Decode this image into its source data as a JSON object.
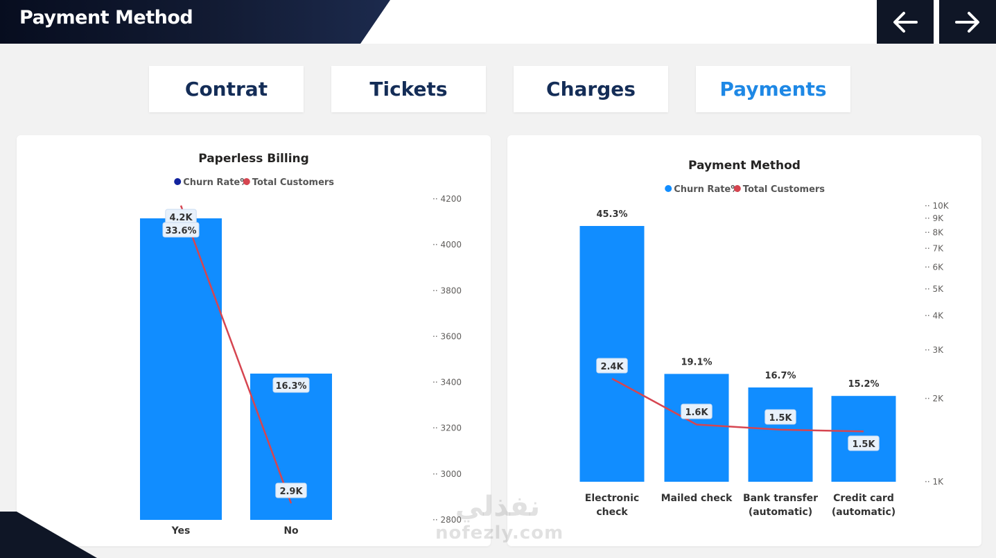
{
  "header": {
    "title": "Payment Method",
    "back_icon": "arrow-left-icon",
    "forward_icon": "arrow-right-icon"
  },
  "tabs": [
    {
      "label": "Contrat",
      "active": false
    },
    {
      "label": "Tickets",
      "active": false
    },
    {
      "label": "Charges",
      "active": false
    },
    {
      "label": "Payments",
      "active": true
    }
  ],
  "colors": {
    "bar": "#118dff",
    "line": "#d64550",
    "churn_dot_left": "#12239e",
    "churn_dot_right": "#118dff",
    "tab_text": "#142d57",
    "tab_active": "#1e88e5"
  },
  "watermark": {
    "arabic": "نفذلي",
    "latin": "nofezly.com"
  },
  "chart_data": [
    {
      "type": "bar",
      "title": "Paperless Billing",
      "legend": [
        "Churn Rate%",
        "Total Customers"
      ],
      "legend_position": "top-center",
      "categories": [
        "Yes",
        "No"
      ],
      "series": [
        {
          "name": "Churn Rate%",
          "type": "bar",
          "values": [
            33.6,
            16.3
          ],
          "labels": [
            "33.6%",
            "16.3%"
          ]
        },
        {
          "name": "Total Customers",
          "type": "line",
          "axis": "right",
          "values": [
            4171,
            2872
          ],
          "labels": [
            "4.2K",
            "2.9K"
          ]
        }
      ],
      "y_right_ticks": [
        "4200",
        "4000",
        "3800",
        "3600",
        "3400",
        "3200",
        "3000",
        "2800"
      ],
      "y_right_range": [
        2800,
        4200
      ],
      "grid": false
    },
    {
      "type": "bar",
      "title": "Payment Method",
      "legend": [
        "Churn Rate%",
        "Total Customers"
      ],
      "legend_position": "top-center",
      "categories": [
        "Electronic check",
        "Mailed check",
        "Bank transfer (automatic)",
        "Credit card (automatic)"
      ],
      "category_lines": [
        [
          "Electronic",
          "check"
        ],
        [
          "Mailed check"
        ],
        [
          "Bank transfer",
          "(automatic)"
        ],
        [
          "Credit card",
          "(automatic)"
        ]
      ],
      "series": [
        {
          "name": "Churn Rate%",
          "type": "bar",
          "values": [
            45.3,
            19.1,
            16.7,
            15.2
          ],
          "labels": [
            "45.3%",
            "19.1%",
            "16.7%",
            "15.2%"
          ]
        },
        {
          "name": "Total Customers",
          "type": "line",
          "axis": "right",
          "scale": "log",
          "values": [
            2365,
            1612,
            1544,
            1522
          ],
          "labels": [
            "2.4K",
            "1.6K",
            "1.5K",
            "1.5K"
          ]
        }
      ],
      "y_right_ticks": [
        "10K",
        "9K",
        "8K",
        "7K",
        "6K",
        "5K",
        "4K",
        "3K",
        "2K",
        "1K"
      ],
      "y_right_tick_values": [
        10000,
        9000,
        8000,
        7000,
        6000,
        5000,
        4000,
        3000,
        2000,
        1000
      ],
      "y_right_range": [
        1000,
        10000
      ],
      "grid": false
    }
  ]
}
